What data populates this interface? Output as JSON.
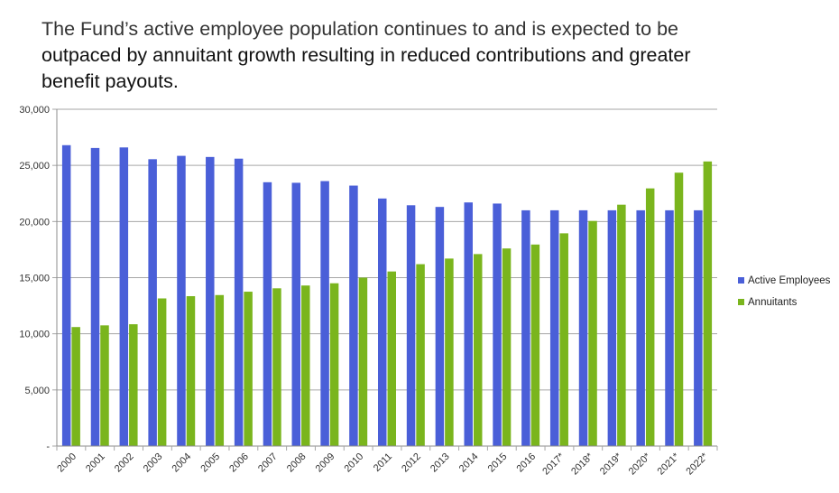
{
  "headline": {
    "line1": "The Fund’s active employee population continues to and is expected to be",
    "line2": "outpaced by annuitant growth resulting in reduced contributions and greater",
    "line3": "benefit payouts."
  },
  "colors": {
    "active": "#4A5FD8",
    "annuitants": "#7AB51D",
    "grid": "#a6a6a6"
  },
  "chart_data": {
    "type": "bar",
    "title": "The Fund’s active employee population continues to and is expected to be outpaced by annuitant growth resulting in reduced contributions and greater benefit payouts.",
    "categories": [
      "2000",
      "2001",
      "2002",
      "2003",
      "2004",
      "2005",
      "2006",
      "2007",
      "2008",
      "2009",
      "2010",
      "2011",
      "2012",
      "2013",
      "2014",
      "2015",
      "2016",
      "2017*",
      "2018*",
      "2019*",
      "2020*",
      "2021*",
      "2022*"
    ],
    "series": [
      {
        "name": "Active Employees",
        "values": [
          26800,
          26550,
          26600,
          25550,
          25850,
          25750,
          25600,
          23500,
          23450,
          23600,
          23200,
          22050,
          21450,
          21300,
          21700,
          21600,
          21000,
          21000,
          21000,
          21000,
          21000,
          21000,
          21000
        ]
      },
      {
        "name": "Annuitants",
        "values": [
          10600,
          10750,
          10850,
          13150,
          13350,
          13450,
          13750,
          14050,
          14300,
          14500,
          15000,
          15550,
          16200,
          16700,
          17100,
          17600,
          17950,
          18950,
          20050,
          21500,
          22950,
          24350,
          25350
        ]
      }
    ],
    "yticks": [
      "30,000",
      "25,000",
      "20,000",
      "15,000",
      "10,000",
      "5,000",
      "-"
    ],
    "ytick_values": [
      30000,
      25000,
      20000,
      15000,
      10000,
      5000,
      0
    ],
    "ylim": [
      0,
      30000
    ],
    "xlabel": "",
    "ylabel": "",
    "grid": true,
    "legend": "right"
  }
}
